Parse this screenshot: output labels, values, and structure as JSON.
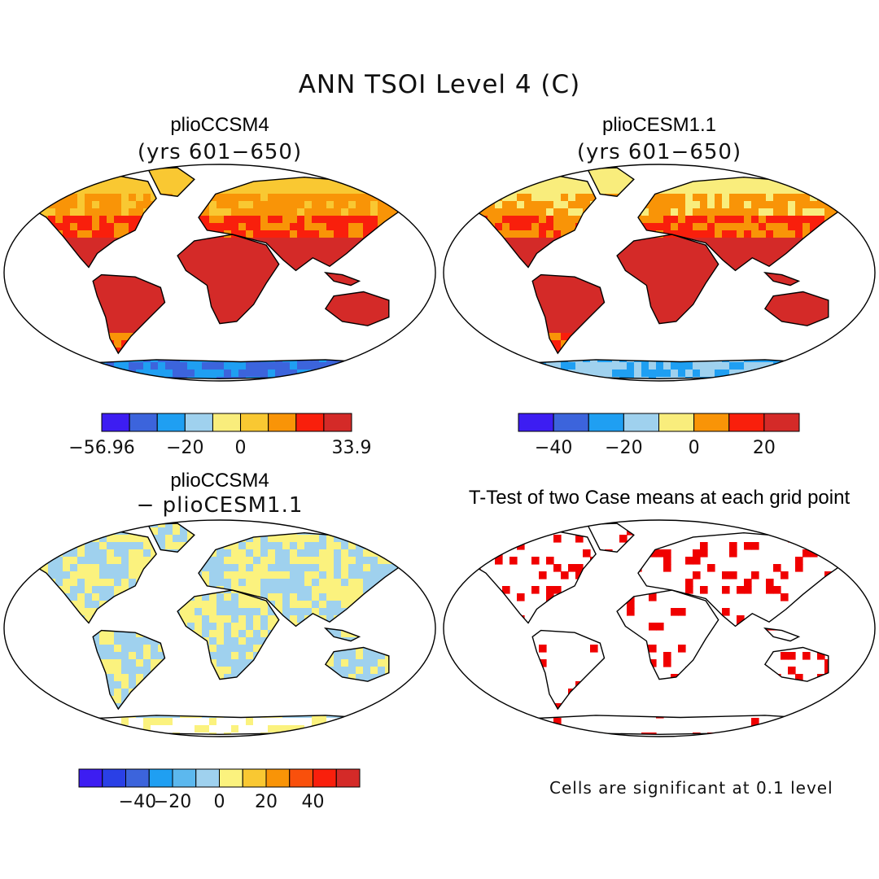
{
  "main_title": "ANN TSOI Level 4 (C)",
  "panels": [
    {
      "title": "plioCCSM4",
      "subtitle": "(yrs 601−650)",
      "variant": "ccsm4"
    },
    {
      "title": "plioCESM1.1",
      "subtitle": "(yrs 601−650)",
      "variant": "cesm"
    },
    {
      "title": "plioCCSM4",
      "subtitle": "− plioCESM1.1",
      "variant": "diff"
    },
    {
      "title": "T-Test of two Case means at each grid point",
      "subtitle": "",
      "variant": "ttest"
    }
  ],
  "colorbars": [
    {
      "colors": [
        "#3d1df2",
        "#3c64dc",
        "#1f9ff2",
        "#9fd1ee",
        "#f9ed7c",
        "#f9c832",
        "#f99407",
        "#f91f0c",
        "#d42a28"
      ],
      "labels": [
        "−56.96",
        "−20",
        "0",
        "33.9"
      ]
    },
    {
      "colors": [
        "#3d1df2",
        "#3c64dc",
        "#1f9ff2",
        "#9fd1ee",
        "#f9ed7c",
        "#f99407",
        "#f91f0c",
        "#d42a28"
      ],
      "labels": [
        "−40",
        "−20",
        "0",
        "20"
      ]
    },
    {
      "colors": [
        "#3d1df2",
        "#2a40e6",
        "#3c64dc",
        "#1f9ff2",
        "#5cb8ee",
        "#9fd1ee",
        "#fbf27e",
        "#f9c832",
        "#f99407",
        "#f9500c",
        "#f91f0c",
        "#d42a28"
      ],
      "labels": [
        "−40",
        "−20",
        "0",
        "20",
        "40"
      ]
    }
  ],
  "footnote": "Cells are significant at 0.1 level",
  "colors": {
    "land_warm": "#d42a28",
    "significant": "#f00000",
    "ocean": "#ffffff",
    "coast": "#000000"
  }
}
